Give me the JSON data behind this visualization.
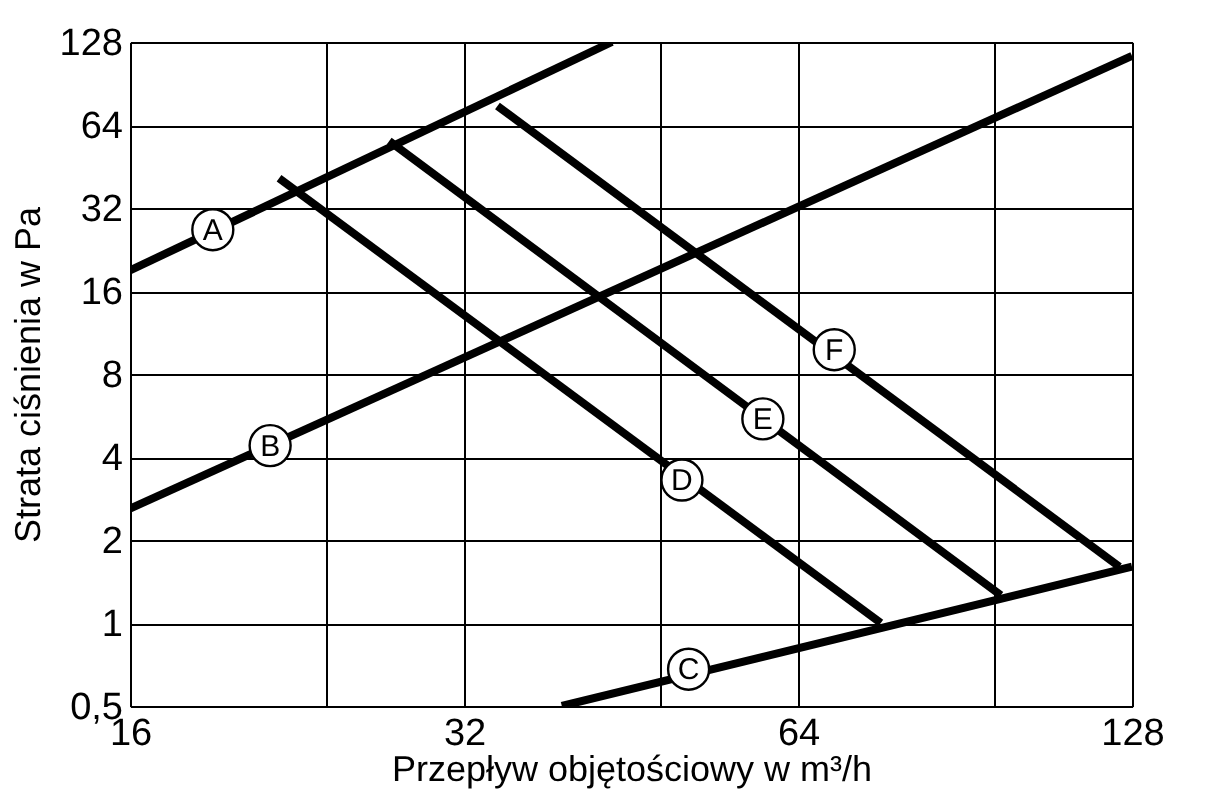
{
  "chart_data": {
    "type": "line",
    "xlabel": "Przepływ objętościowy w m³/h",
    "ylabel": "Strata ciśnienia w Pa",
    "log": "xy",
    "grid": true,
    "legend": false,
    "marker": "none",
    "line_style": "solid",
    "xlim": [
      16,
      128
    ],
    "ylim": [
      0.5,
      128
    ],
    "xticks": [
      16,
      {
        "value": 24,
        "label": null
      },
      32,
      {
        "value": 48,
        "label": null
      },
      64,
      {
        "value": 96,
        "label": null
      },
      128
    ],
    "yticks": [
      {
        "value": 0.5,
        "label": "0,5"
      },
      1,
      2,
      4,
      8,
      16,
      32,
      64,
      128
    ],
    "series": [
      {
        "color": "#000000",
        "x": [
          16,
          43.5
        ],
        "values": [
          19,
          128
        ]
      },
      {
        "color": "#000000",
        "x": [
          16,
          128
        ],
        "values": [
          2.6,
          114
        ]
      },
      {
        "color": "#000000",
        "x": [
          39.2,
          128
        ],
        "values": [
          0.5,
          1.6
        ]
      },
      {
        "color": "#000000",
        "x": [
          21.8,
          76
        ],
        "values": [
          41,
          1
        ]
      },
      {
        "color": "#000000",
        "x": [
          27.4,
          97.5
        ],
        "values": [
          56,
          1.26
        ]
      },
      {
        "color": "#000000",
        "x": [
          34.3,
          124.7
        ],
        "values": [
          75,
          1.6
        ]
      }
    ],
    "annotations": [
      {
        "text": "A",
        "x": 19,
        "y": 26.7
      },
      {
        "text": "B",
        "x": 21.4,
        "y": 4.4
      },
      {
        "text": "C",
        "x": 51,
        "y": 0.68
      },
      {
        "text": "D",
        "x": 50.3,
        "y": 3.3
      },
      {
        "text": "E",
        "x": 59.5,
        "y": 5.5
      },
      {
        "text": "F",
        "x": 69,
        "y": 9.8
      }
    ]
  }
}
